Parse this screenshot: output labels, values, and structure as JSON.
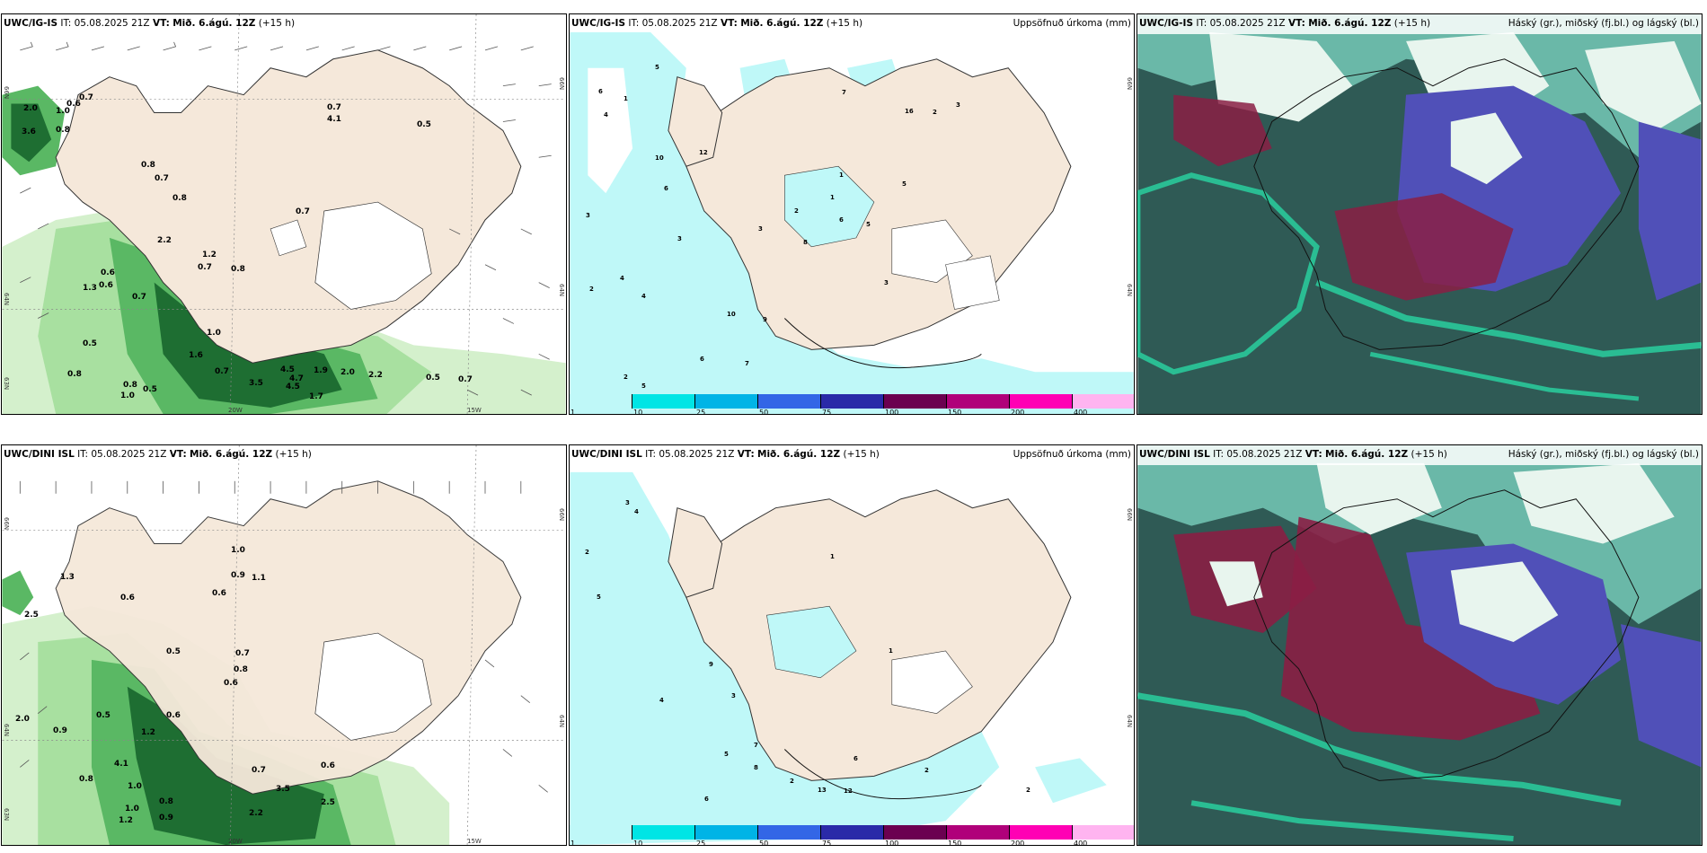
{
  "panels": {
    "p1": {
      "model": "UWC/IG-IS",
      "it_label": "IT:",
      "it_value": "05.08.2025 21Z",
      "vt_label": "VT:",
      "vt_value": "Mið. 6.ágú. 12Z",
      "lead": "(+15 h)",
      "right_title": ""
    },
    "p2": {
      "model": "UWC/IG-IS",
      "it_label": "IT:",
      "it_value": "05.08.2025 21Z",
      "vt_label": "VT:",
      "vt_value": "Mið. 6.ágú. 12Z",
      "lead": "(+15 h)",
      "right_title": "Uppsöfnuð úrkoma (mm)"
    },
    "p3": {
      "model": "UWC/IG-IS",
      "it_label": "IT:",
      "it_value": "05.08.2025 21Z",
      "vt_label": "VT:",
      "vt_value": "Mið. 6.ágú. 12Z",
      "lead": "(+15 h)",
      "right_title": "Háský (gr.), miðský (fj.bl.) og lágský (bl.)"
    },
    "p4": {
      "model": "UWC/DINI ISL",
      "it_label": "IT:",
      "it_value": "05.08.2025 21Z",
      "vt_label": "VT:",
      "vt_value": "Mið. 6.ágú. 12Z",
      "lead": "(+15 h)",
      "right_title": ""
    },
    "p5": {
      "model": "UWC/DINI ISL",
      "it_label": "IT:",
      "it_value": "05.08.2025 21Z",
      "vt_label": "VT:",
      "vt_value": "Mið. 6.ágú. 12Z",
      "lead": "(+15 h)",
      "right_title": "Uppsöfnuð úrkoma (mm)"
    },
    "p6": {
      "model": "UWC/DINI ISL",
      "it_label": "IT:",
      "it_value": "05.08.2025 21Z",
      "vt_label": "VT:",
      "vt_value": "Mið. 6.ágú. 12Z",
      "lead": "(+15 h)",
      "right_title": "Háský (gr.), miðský (fj.bl.) og lágský (bl.)"
    }
  },
  "axes": {
    "lat_labels": [
      "66N",
      "64N",
      "63N"
    ],
    "lon_labels": [
      "20W",
      "15W"
    ],
    "right_lat_labels": [
      "66N",
      "64N"
    ]
  },
  "colorbar": {
    "ticks": [
      "1",
      "10",
      "25",
      "50",
      "75",
      "100",
      "150",
      "200",
      "400"
    ],
    "colors": [
      "#bff8f8",
      "#00e5e5",
      "#00b4e6",
      "#3366e6",
      "#2a2aa8",
      "#6b0050",
      "#b0007a",
      "#ff00b4",
      "#ffb4f0"
    ]
  },
  "colors": {
    "land": "#f5e8da",
    "land_top_left": "#efe2d2",
    "green_light": "#a8e0a0",
    "green_mid": "#5ab864",
    "green_dark": "#1e6e32",
    "precip_light": "#bff8f8",
    "cloud_dark": "#2f5a55",
    "cloud_teal": "#2ac89a",
    "cloud_blue": "#5050b8",
    "cloud_red": "#8a1e44"
  },
  "precip_labels_p1": [
    "0.7",
    "1.0",
    "0.6",
    "0.8",
    "2.0",
    "3.6",
    "0.8",
    "0.7",
    "0.5",
    "0.7",
    "4.1",
    "0.8",
    "0.6",
    "0.7",
    "0.5",
    "2.2",
    "1.2",
    "0.7",
    "0.8",
    "1.3",
    "0.6",
    "0.7",
    "1.0",
    "0.5",
    "0.8",
    "0.8",
    "1.0",
    "0.7",
    "4.5",
    "4.7",
    "1.9",
    "2.0",
    "2.2",
    "0.5",
    "0.7",
    "3.5",
    "4.5",
    "1.7",
    "1.6"
  ],
  "precip_labels_p2": [
    "5",
    "6",
    "3",
    "2",
    "4",
    "1",
    "12",
    "10",
    "3",
    "7",
    "6",
    "16",
    "2",
    "3",
    "1",
    "5",
    "4",
    "10",
    "7",
    "8",
    "9",
    "3",
    "2",
    "6",
    "5",
    "1",
    "4",
    "2",
    "3",
    "5",
    "6"
  ],
  "precip_labels_p4": [
    "1.0",
    "0.9",
    "1.1",
    "0.6",
    "1.3",
    "0.6",
    "2.5",
    "0.5",
    "0.8",
    "0.7",
    "0.6",
    "2.0",
    "0.9",
    "1.2",
    "0.5",
    "0.6",
    "1.0",
    "0.8",
    "0.9",
    "2.2",
    "3.5",
    "4.1",
    "1.2",
    "0.6",
    "0.8",
    "0.7",
    "2.5",
    "1.0"
  ],
  "precip_labels_p5": [
    "3",
    "4",
    "2",
    "1",
    "5",
    "7",
    "6",
    "8",
    "9",
    "2",
    "13",
    "12",
    "3",
    "4",
    "6",
    "2",
    "1",
    "5",
    "2"
  ]
}
